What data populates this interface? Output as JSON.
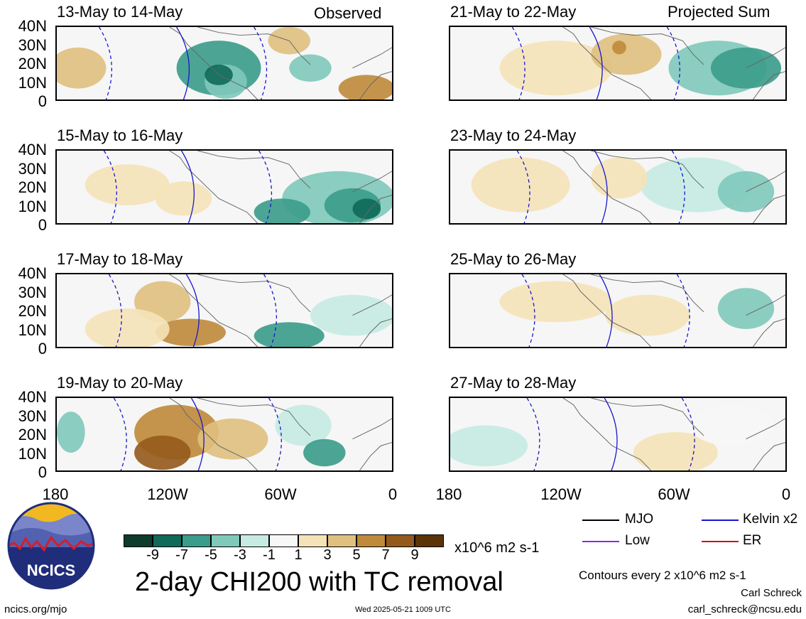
{
  "header": {
    "left_tag": "Observed",
    "right_tag": "Projected Sum"
  },
  "panels": [
    {
      "title": "13-May to 14-May",
      "kind": "observed"
    },
    {
      "title": "15-May to 16-May",
      "kind": "observed"
    },
    {
      "title": "17-May to 18-May",
      "kind": "observed"
    },
    {
      "title": "19-May to 20-May",
      "kind": "observed"
    },
    {
      "title": "21-May to 22-May",
      "kind": "projected"
    },
    {
      "title": "23-May to 24-May",
      "kind": "projected"
    },
    {
      "title": "25-May to 26-May",
      "kind": "projected"
    },
    {
      "title": "27-May to 28-May",
      "kind": "projected"
    }
  ],
  "axes": {
    "lat_labels": [
      "40N",
      "30N",
      "20N",
      "10N",
      "0"
    ],
    "lon_labels": [
      "180",
      "120W",
      "60W",
      "0"
    ]
  },
  "colorbar": {
    "colors": [
      "#0d3b2c",
      "#11695a",
      "#3a9c8a",
      "#7fc9bb",
      "#c5ebe3",
      "#f7f7f7",
      "#f5e3b8",
      "#dfc07e",
      "#c08a3a",
      "#935a1c",
      "#5a3307"
    ],
    "labels": [
      "-9",
      "-7",
      "-5",
      "-3",
      "-1",
      "1",
      "3",
      "5",
      "7",
      "9"
    ],
    "units": "x10^6 m2 s-1"
  },
  "legend": {
    "items": [
      {
        "label": "MJO",
        "color": "#000000"
      },
      {
        "label": "Kelvin x2",
        "color": "#1515d0"
      },
      {
        "label": "Low",
        "color": "#8a2be2"
      },
      {
        "label": "ER",
        "color": "#d01010"
      }
    ],
    "contour_note": "Contours every 2 x10^6 m2 s-1"
  },
  "logo": {
    "text": "NCICS"
  },
  "footer": {
    "main_title": "2-day CHI200 with TC removal",
    "left_url": "ncics.org/mjo",
    "timestamp": "Wed 2025-05-21 1009 UTC",
    "author": "Carl Schreck",
    "email": "carl_schreck@ncsu.edu"
  }
}
